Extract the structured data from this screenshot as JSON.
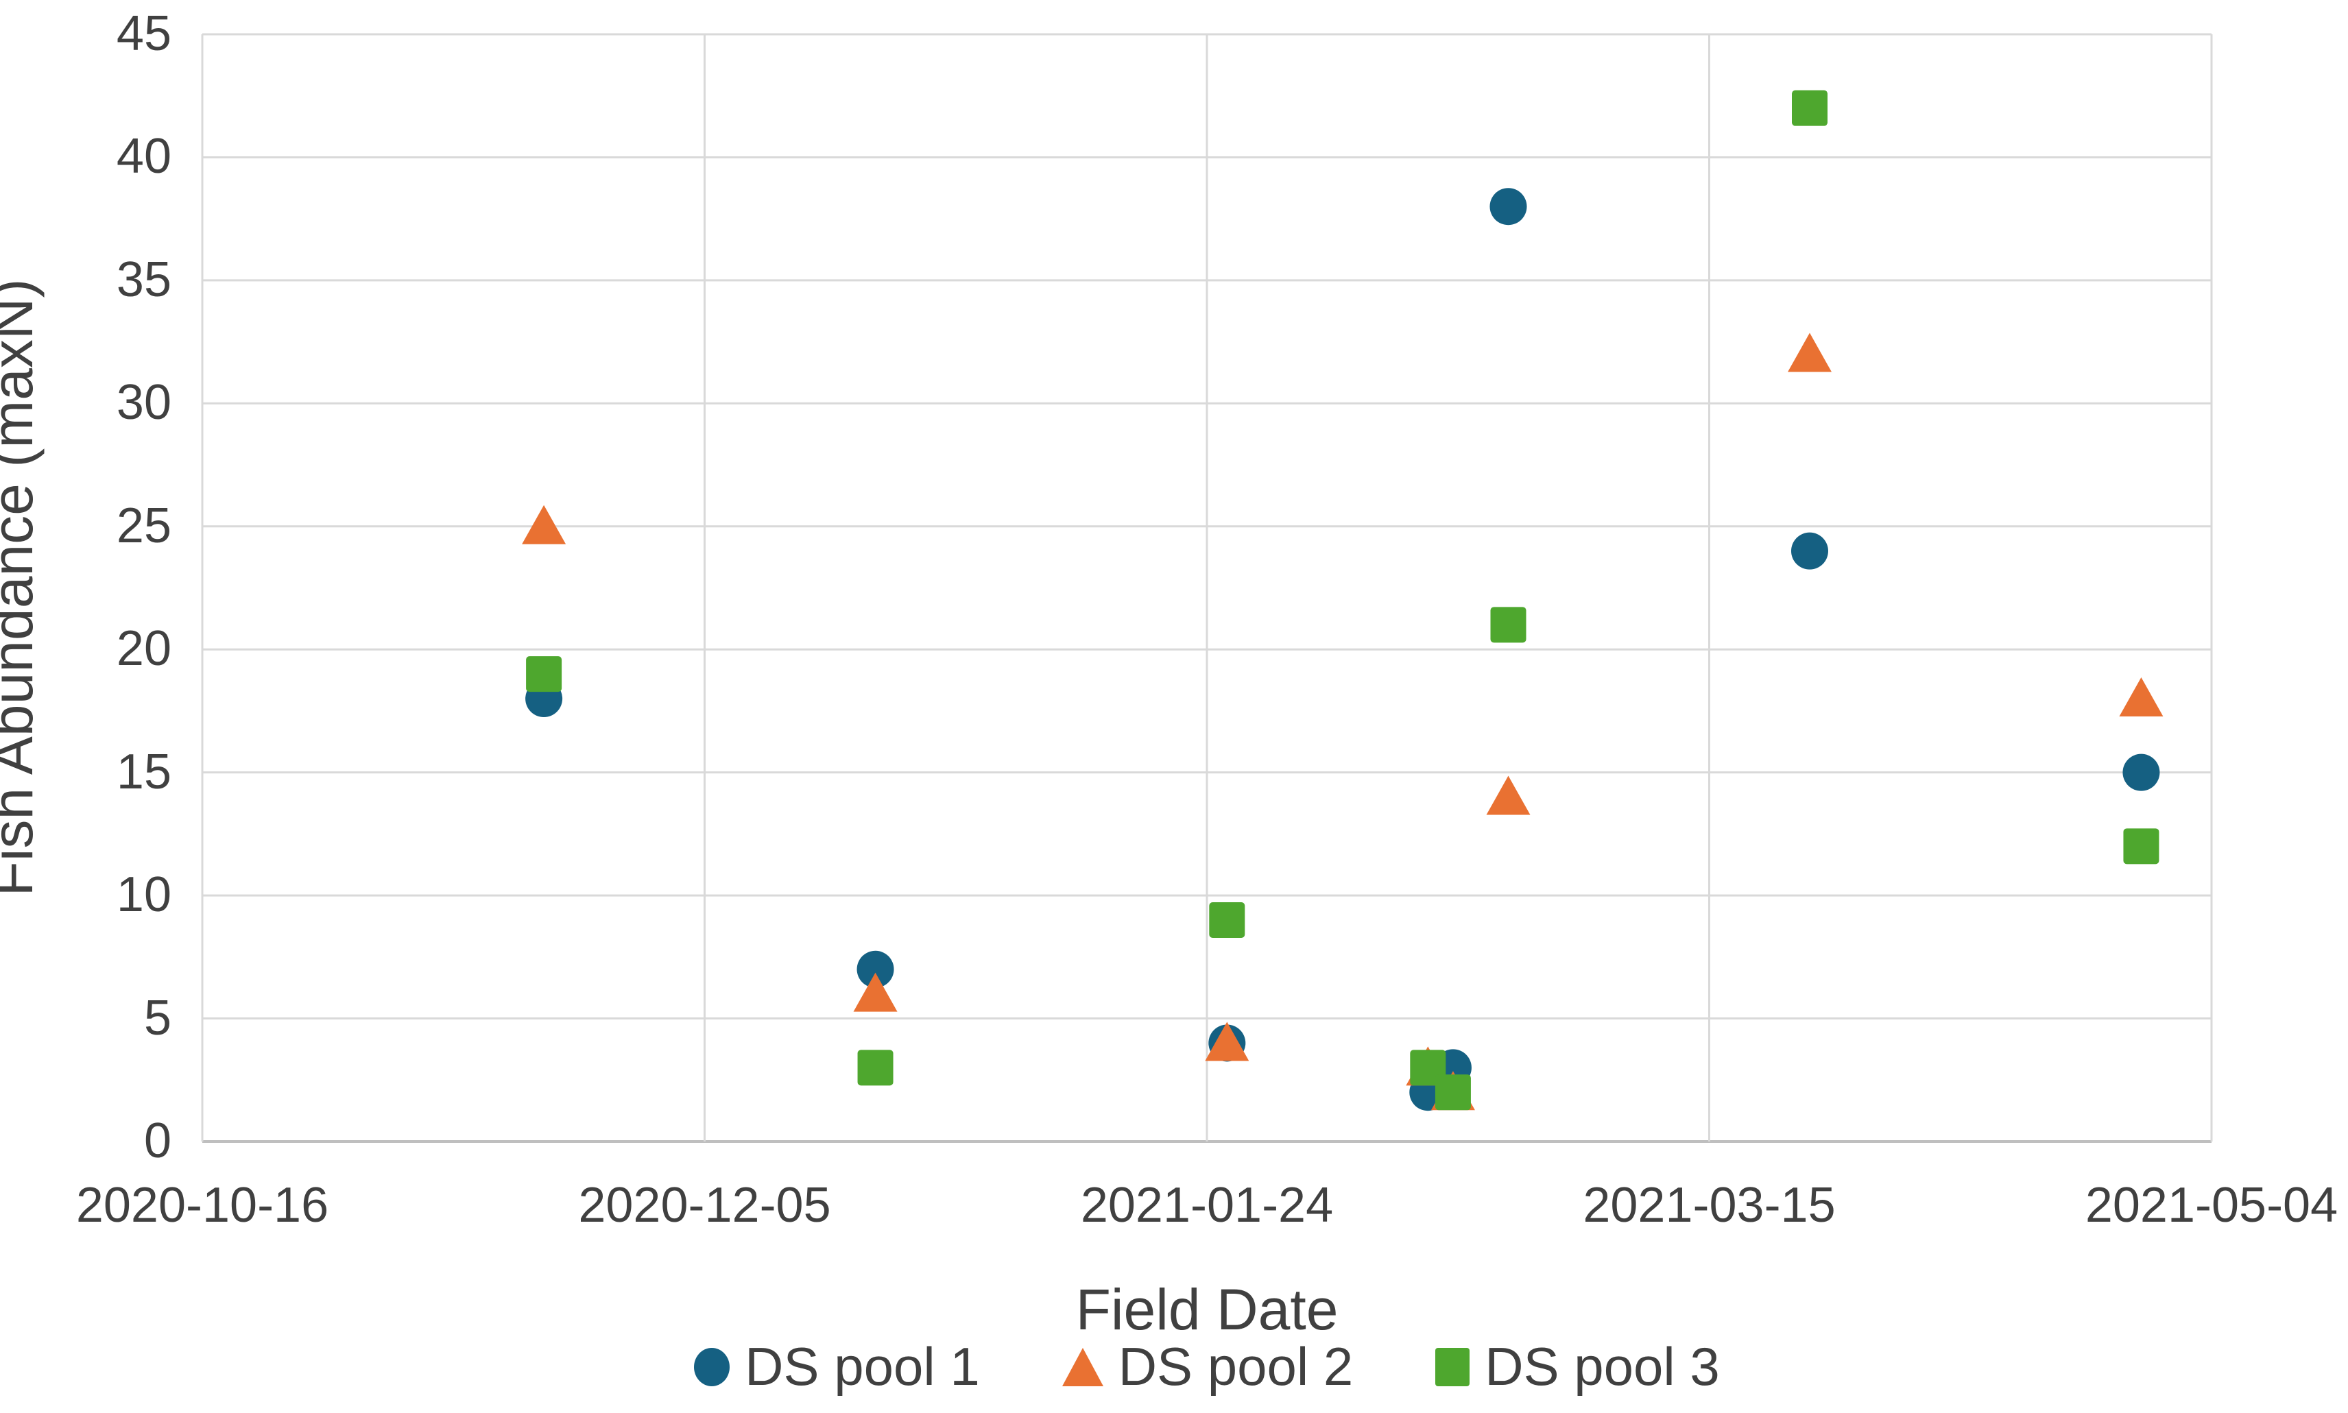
{
  "chart_data": {
    "type": "scatter",
    "title": "",
    "xlabel": "Field Date",
    "ylabel": "Fish Abundance (maxN)",
    "grid": true,
    "legend_position": "bottom",
    "x_axis": {
      "kind": "date",
      "start_date": "2020-10-16",
      "end_date": "2021-05-04",
      "range_days": [
        0,
        200
      ],
      "tick_days": [
        0,
        50,
        100,
        150,
        200
      ],
      "tick_labels": [
        "2020-10-16",
        "2020-12-05",
        "2021-01-24",
        "2021-03-15",
        "2021-05-04"
      ]
    },
    "y_axis": {
      "min": 0,
      "max": 45,
      "tick_step": 5,
      "ticks": [
        0,
        5,
        10,
        15,
        20,
        25,
        30,
        35,
        40,
        45
      ]
    },
    "colors": {
      "grid": "#D9D9D9",
      "axis_line": "#BFBFBF",
      "text": "#404040",
      "background": "#FFFFFF"
    },
    "series": [
      {
        "name": "DS pool 1",
        "marker": "circle",
        "color": "#156082",
        "points": [
          {
            "date": "2020-11-19",
            "day": 34,
            "value": 18
          },
          {
            "date": "2020-12-22",
            "day": 67,
            "value": 7
          },
          {
            "date": "2021-01-26",
            "day": 102,
            "value": 4
          },
          {
            "date": "2021-02-15",
            "day": 122,
            "value": 2
          },
          {
            "date": "2021-02-17",
            "day": 124.5,
            "value": 3
          },
          {
            "date": "2021-02-23",
            "day": 130,
            "value": 38
          },
          {
            "date": "2021-03-25",
            "day": 160,
            "value": 24
          },
          {
            "date": "2021-04-27",
            "day": 193,
            "value": 15
          }
        ]
      },
      {
        "name": "DS pool 2",
        "marker": "triangle",
        "color": "#E97132",
        "points": [
          {
            "date": "2020-11-19",
            "day": 34,
            "value": 25
          },
          {
            "date": "2020-12-22",
            "day": 67,
            "value": 6
          },
          {
            "date": "2021-01-26",
            "day": 102,
            "value": 4
          },
          {
            "date": "2021-02-15",
            "day": 122,
            "value": 3
          },
          {
            "date": "2021-02-17",
            "day": 124.5,
            "value": 2
          },
          {
            "date": "2021-02-23",
            "day": 130,
            "value": 14
          },
          {
            "date": "2021-03-25",
            "day": 160,
            "value": 32
          },
          {
            "date": "2021-04-27",
            "day": 193,
            "value": 18
          }
        ]
      },
      {
        "name": "DS pool 3",
        "marker": "square",
        "color": "#4EA72E",
        "points": [
          {
            "date": "2020-11-19",
            "day": 34,
            "value": 19
          },
          {
            "date": "2020-12-22",
            "day": 67,
            "value": 3
          },
          {
            "date": "2021-01-26",
            "day": 102,
            "value": 9
          },
          {
            "date": "2021-02-15",
            "day": 122,
            "value": 3
          },
          {
            "date": "2021-02-17",
            "day": 124.5,
            "value": 2
          },
          {
            "date": "2021-02-23",
            "day": 130,
            "value": 21
          },
          {
            "date": "2021-03-25",
            "day": 160,
            "value": 42
          },
          {
            "date": "2021-04-27",
            "day": 193,
            "value": 12
          }
        ]
      }
    ]
  }
}
